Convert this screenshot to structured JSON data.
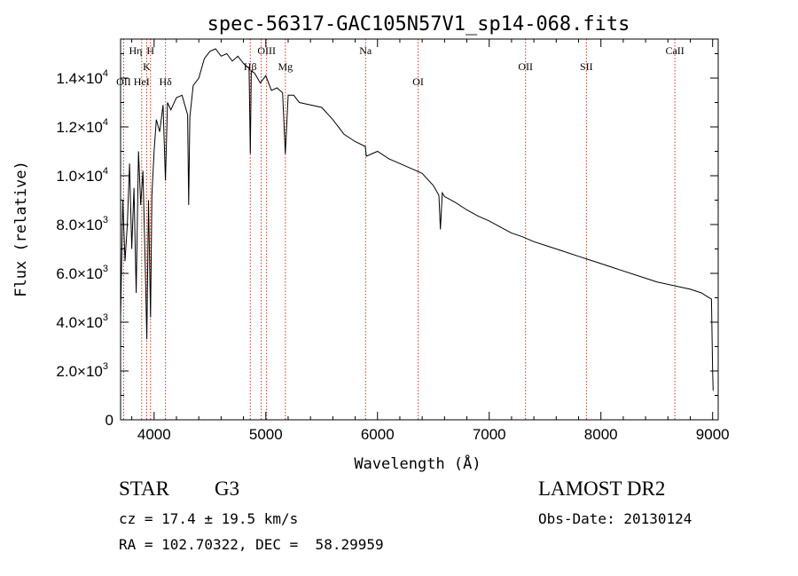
{
  "chart_data": {
    "type": "line",
    "title": "spec-56317-GAC105N57V1_sp14-068.fits",
    "xlabel": "Wavelength (Å)",
    "ylabel": "Flux (relative)",
    "xlim": [
      3700,
      9050
    ],
    "ylim": [
      0,
      15600
    ],
    "x_ticks": [
      4000,
      5000,
      6000,
      7000,
      8000,
      9000
    ],
    "y_ticks": [
      {
        "value": 0,
        "mant": "0",
        "exp": ""
      },
      {
        "value": 2000,
        "mant": "2.0×10",
        "exp": "3"
      },
      {
        "value": 4000,
        "mant": "4.0×10",
        "exp": "3"
      },
      {
        "value": 6000,
        "mant": "6.0×10",
        "exp": "3"
      },
      {
        "value": 8000,
        "mant": "8.0×10",
        "exp": "3"
      },
      {
        "value": 10000,
        "mant": "1.0×10",
        "exp": "4"
      },
      {
        "value": 12000,
        "mant": "1.2×10",
        "exp": "4"
      },
      {
        "value": 14000,
        "mant": "1.4×10",
        "exp": "4"
      }
    ],
    "grid": false,
    "series": [
      {
        "color": "#000000",
        "x": [
          3700,
          3720,
          3740,
          3760,
          3780,
          3800,
          3820,
          3840,
          3860,
          3880,
          3900,
          3920,
          3935,
          3950,
          3968,
          3980,
          4000,
          4020,
          4050,
          4080,
          4102,
          4120,
          4150,
          4200,
          4250,
          4300,
          4310,
          4320,
          4350,
          4400,
          4450,
          4500,
          4550,
          4600,
          4650,
          4700,
          4750,
          4800,
          4850,
          4861,
          4870,
          4900,
          4950,
          5000,
          5050,
          5100,
          5150,
          5175,
          5200,
          5250,
          5300,
          5400,
          5500,
          5600,
          5700,
          5800,
          5890,
          5900,
          6000,
          6100,
          6200,
          6300,
          6400,
          6500,
          6550,
          6563,
          6580,
          6600,
          6700,
          6800,
          6900,
          7000,
          7100,
          7200,
          7300,
          7400,
          7500,
          7600,
          7700,
          7800,
          7900,
          8000,
          8100,
          8200,
          8300,
          8400,
          8500,
          8600,
          8700,
          8800,
          8900,
          8950,
          8990,
          9000,
          9005
        ],
        "y": [
          4200,
          9000,
          6500,
          8000,
          10500,
          7000,
          9500,
          5200,
          11000,
          8800,
          10200,
          6500,
          3300,
          9000,
          4200,
          9200,
          11000,
          12300,
          11800,
          12900,
          9800,
          13000,
          12700,
          13200,
          13300,
          12500,
          8800,
          12400,
          13700,
          14000,
          14800,
          15100,
          15200,
          14900,
          15000,
          14700,
          14900,
          14600,
          14400,
          10900,
          14300,
          14200,
          13800,
          14100,
          13500,
          13600,
          13400,
          10900,
          13300,
          13300,
          13000,
          12900,
          12800,
          12300,
          11700,
          11400,
          11200,
          10800,
          11000,
          10700,
          10500,
          10300,
          10100,
          9600,
          9200,
          7800,
          9300,
          9150,
          8900,
          8600,
          8350,
          8150,
          7900,
          7650,
          7500,
          7300,
          7150,
          7000,
          6850,
          6700,
          6550,
          6400,
          6250,
          6100,
          5950,
          5800,
          5650,
          5550,
          5450,
          5350,
          5200,
          5050,
          4950,
          2000,
          1200
        ]
      }
    ],
    "line_markers": [
      {
        "label": "OII",
        "x": 3727,
        "row": 3
      },
      {
        "label": "HeI",
        "x": 3889,
        "row": 3
      },
      {
        "label": "Hη",
        "x": 3835,
        "row": 1
      },
      {
        "label": "H",
        "x": 3968,
        "row": 1
      },
      {
        "label": "K",
        "x": 3934,
        "row": 2
      },
      {
        "label": "Hδ",
        "x": 4102,
        "row": 3
      },
      {
        "label": "Hβ",
        "x": 4861,
        "row": 2
      },
      {
        "label": "OIII",
        "x": 5007,
        "row": 1
      },
      {
        "label": "Mg",
        "x": 5175,
        "row": 2
      },
      {
        "label": "Na",
        "x": 5893,
        "row": 1
      },
      {
        "label": "OI",
        "x": 6364,
        "row": 3
      },
      {
        "label": "OII",
        "x": 7325,
        "row": 2
      },
      {
        "label": "SII",
        "x": 7870,
        "row": 2
      },
      {
        "label": "CaII",
        "x": 8662,
        "row": 1
      }
    ],
    "marker_lines_x": [
      3727,
      3889,
      3934,
      3968,
      4102,
      4861,
      4959,
      5007,
      5175,
      5893,
      6364,
      7325,
      7870,
      8662
    ]
  },
  "info": {
    "object_class": "STAR",
    "subclass": "G3",
    "survey": "LAMOST DR2",
    "redshift": "cz = 17.4 ± 19.5 km/s",
    "obs_date": "Obs-Date: 20130124",
    "coords": "RA = 102.70322, DEC =  58.29959"
  }
}
